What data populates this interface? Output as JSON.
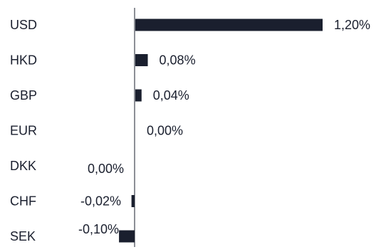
{
  "chart_data": {
    "type": "bar",
    "orientation": "horizontal",
    "categories": [
      "USD",
      "HKD",
      "GBP",
      "EUR",
      "DKK",
      "CHF",
      "SEK"
    ],
    "values": [
      1.2,
      0.08,
      0.04,
      0.0,
      0.0,
      -0.02,
      -0.1
    ],
    "value_labels": [
      "1,20%",
      "0,08%",
      "0,04%",
      "0,00%",
      "0,00%",
      "-0,02%",
      "-0,10%"
    ],
    "title": "",
    "xlabel": "",
    "ylabel": "",
    "xlim": [
      -0.1,
      1.2
    ],
    "grid": false,
    "legend": "none",
    "bar_color": "#1a1f2e",
    "axis_color": "#1a1f2e"
  }
}
